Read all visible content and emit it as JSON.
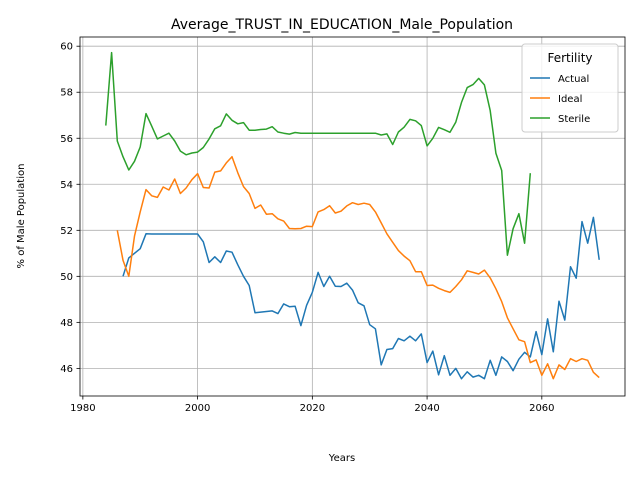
{
  "chart_data": {
    "type": "line",
    "title": "Average_TRUST_IN_EDUCATION_Male_Population",
    "xlabel": "Years",
    "ylabel": "% of Male Population",
    "xlim": [
      1979.5,
      2074.5
    ],
    "ylim": [
      44.8,
      60.4
    ],
    "xticks": [
      1980,
      2000,
      2020,
      2040,
      2060
    ],
    "yticks": [
      46,
      48,
      50,
      52,
      54,
      56,
      58,
      60
    ],
    "grid": true,
    "legend": {
      "title": "Fertility",
      "position": "top-right"
    },
    "series": [
      {
        "name": "Actual",
        "color": "#1f77b4",
        "x": [
          1987,
          1988,
          1990,
          1991,
          1992,
          1995,
          1998,
          2000,
          2001,
          2002,
          2003,
          2004,
          2005,
          2006,
          2007,
          2008,
          2009,
          2010,
          2013,
          2014,
          2015,
          2016,
          2017,
          2018,
          2019,
          2020,
          2021,
          2022,
          2023,
          2024,
          2025,
          2026,
          2027,
          2028,
          2029,
          2030,
          2031,
          2032,
          2033,
          2034,
          2035,
          2036,
          2037,
          2038,
          2039,
          2040,
          2041,
          2042,
          2043,
          2044,
          2045,
          2046,
          2047,
          2048,
          2049,
          2050,
          2051,
          2052,
          2053,
          2054,
          2055,
          2056,
          2057,
          2058,
          2059,
          2060,
          2061,
          2062,
          2063,
          2064,
          2065,
          2066,
          2067,
          2068,
          2069,
          2070
        ],
        "y": [
          50.0,
          50.8,
          51.2,
          51.85,
          51.84,
          51.84,
          51.84,
          51.84,
          51.5,
          50.6,
          50.85,
          50.6,
          51.1,
          51.05,
          50.5,
          50.0,
          49.6,
          48.42,
          48.5,
          48.38,
          48.8,
          48.68,
          48.7,
          47.86,
          48.74,
          49.3,
          50.17,
          49.56,
          50.0,
          49.57,
          49.56,
          49.7,
          49.4,
          48.85,
          48.72,
          47.9,
          47.72,
          46.15,
          46.82,
          46.86,
          47.3,
          47.2,
          47.4,
          47.2,
          47.5,
          46.25,
          46.75,
          45.72,
          46.55,
          45.7,
          46.0,
          45.55,
          45.85,
          45.62,
          45.7,
          45.55,
          46.35,
          45.7,
          46.5,
          46.3,
          45.9,
          46.4,
          46.7,
          46.5,
          47.6,
          46.6,
          48.15,
          46.72,
          48.92,
          48.1,
          50.42,
          49.92,
          52.38,
          51.44,
          52.56,
          50.72
        ]
      },
      {
        "name": "Ideal",
        "color": "#ff7f0e",
        "x": [
          1986,
          1987,
          1988,
          1989,
          1990,
          1991,
          1992,
          1993,
          1994,
          1995,
          1996,
          1997,
          1998,
          1999,
          2000,
          2001,
          2002,
          2003,
          2004,
          2005,
          2006,
          2007,
          2008,
          2009,
          2010,
          2011,
          2012,
          2013,
          2014,
          2015,
          2016,
          2017,
          2018,
          2019,
          2020,
          2021,
          2022,
          2023,
          2024,
          2025,
          2026,
          2027,
          2028,
          2029,
          2030,
          2031,
          2032,
          2033,
          2034,
          2035,
          2036,
          2037,
          2038,
          2039,
          2040,
          2041,
          2042,
          2043,
          2044,
          2045,
          2046,
          2047,
          2048,
          2049,
          2050,
          2051,
          2052,
          2053,
          2054,
          2055,
          2056,
          2057,
          2058,
          2059,
          2060,
          2061,
          2062,
          2063,
          2064,
          2065,
          2066,
          2067,
          2068,
          2069,
          2070
        ],
        "y": [
          52.0,
          50.7,
          50.0,
          51.75,
          52.8,
          53.77,
          53.5,
          53.43,
          53.88,
          53.75,
          54.23,
          53.6,
          53.84,
          54.2,
          54.46,
          53.86,
          53.84,
          54.53,
          54.58,
          54.93,
          55.2,
          54.5,
          53.9,
          53.6,
          52.95,
          53.1,
          52.7,
          52.72,
          52.5,
          52.4,
          52.08,
          52.07,
          52.08,
          52.18,
          52.16,
          52.8,
          52.9,
          53.07,
          52.75,
          52.83,
          53.06,
          53.2,
          53.12,
          53.18,
          53.12,
          52.8,
          52.32,
          51.85,
          51.48,
          51.12,
          50.88,
          50.68,
          50.2,
          50.2,
          49.6,
          49.62,
          49.48,
          49.38,
          49.3,
          49.56,
          49.85,
          50.24,
          50.17,
          50.1,
          50.27,
          49.93,
          49.46,
          48.9,
          48.2,
          47.72,
          47.24,
          47.16,
          46.25,
          46.37,
          45.7,
          46.2,
          45.55,
          46.15,
          45.95,
          46.42,
          46.3,
          46.42,
          46.35,
          45.83,
          45.6
        ]
      },
      {
        "name": "Sterile",
        "color": "#2ca02c",
        "x": [
          1984,
          1985,
          1986,
          1987,
          1988,
          1989,
          1990,
          1991,
          1992,
          1993,
          1994,
          1995,
          1996,
          1997,
          1998,
          1999,
          2000,
          2001,
          2002,
          2003,
          2004,
          2005,
          2006,
          2007,
          2008,
          2009,
          2010,
          2011,
          2012,
          2013,
          2014,
          2015,
          2016,
          2017,
          2018,
          2020,
          2025,
          2030,
          2031,
          2032,
          2033,
          2034,
          2035,
          2036,
          2037,
          2038,
          2039,
          2040,
          2041,
          2042,
          2043,
          2044,
          2045,
          2046,
          2047,
          2048,
          2049,
          2050,
          2051,
          2052,
          2053,
          2054,
          2055,
          2056,
          2057,
          2058
        ],
        "y": [
          56.55,
          59.72,
          55.88,
          55.2,
          54.62,
          55.0,
          55.62,
          57.07,
          56.53,
          55.97,
          56.1,
          56.22,
          55.88,
          55.44,
          55.28,
          55.36,
          55.4,
          55.6,
          55.97,
          56.41,
          56.54,
          57.06,
          56.78,
          56.63,
          56.68,
          56.35,
          56.35,
          56.38,
          56.4,
          56.5,
          56.27,
          56.22,
          56.18,
          56.25,
          56.22,
          56.22,
          56.22,
          56.22,
          56.22,
          56.14,
          56.19,
          55.73,
          56.27,
          56.48,
          56.82,
          56.76,
          56.55,
          55.67,
          56.0,
          56.47,
          56.37,
          56.26,
          56.7,
          57.56,
          58.2,
          58.33,
          58.6,
          58.32,
          57.2,
          55.35,
          54.6,
          50.92,
          52.07,
          52.72,
          51.44,
          54.48
        ]
      }
    ]
  }
}
